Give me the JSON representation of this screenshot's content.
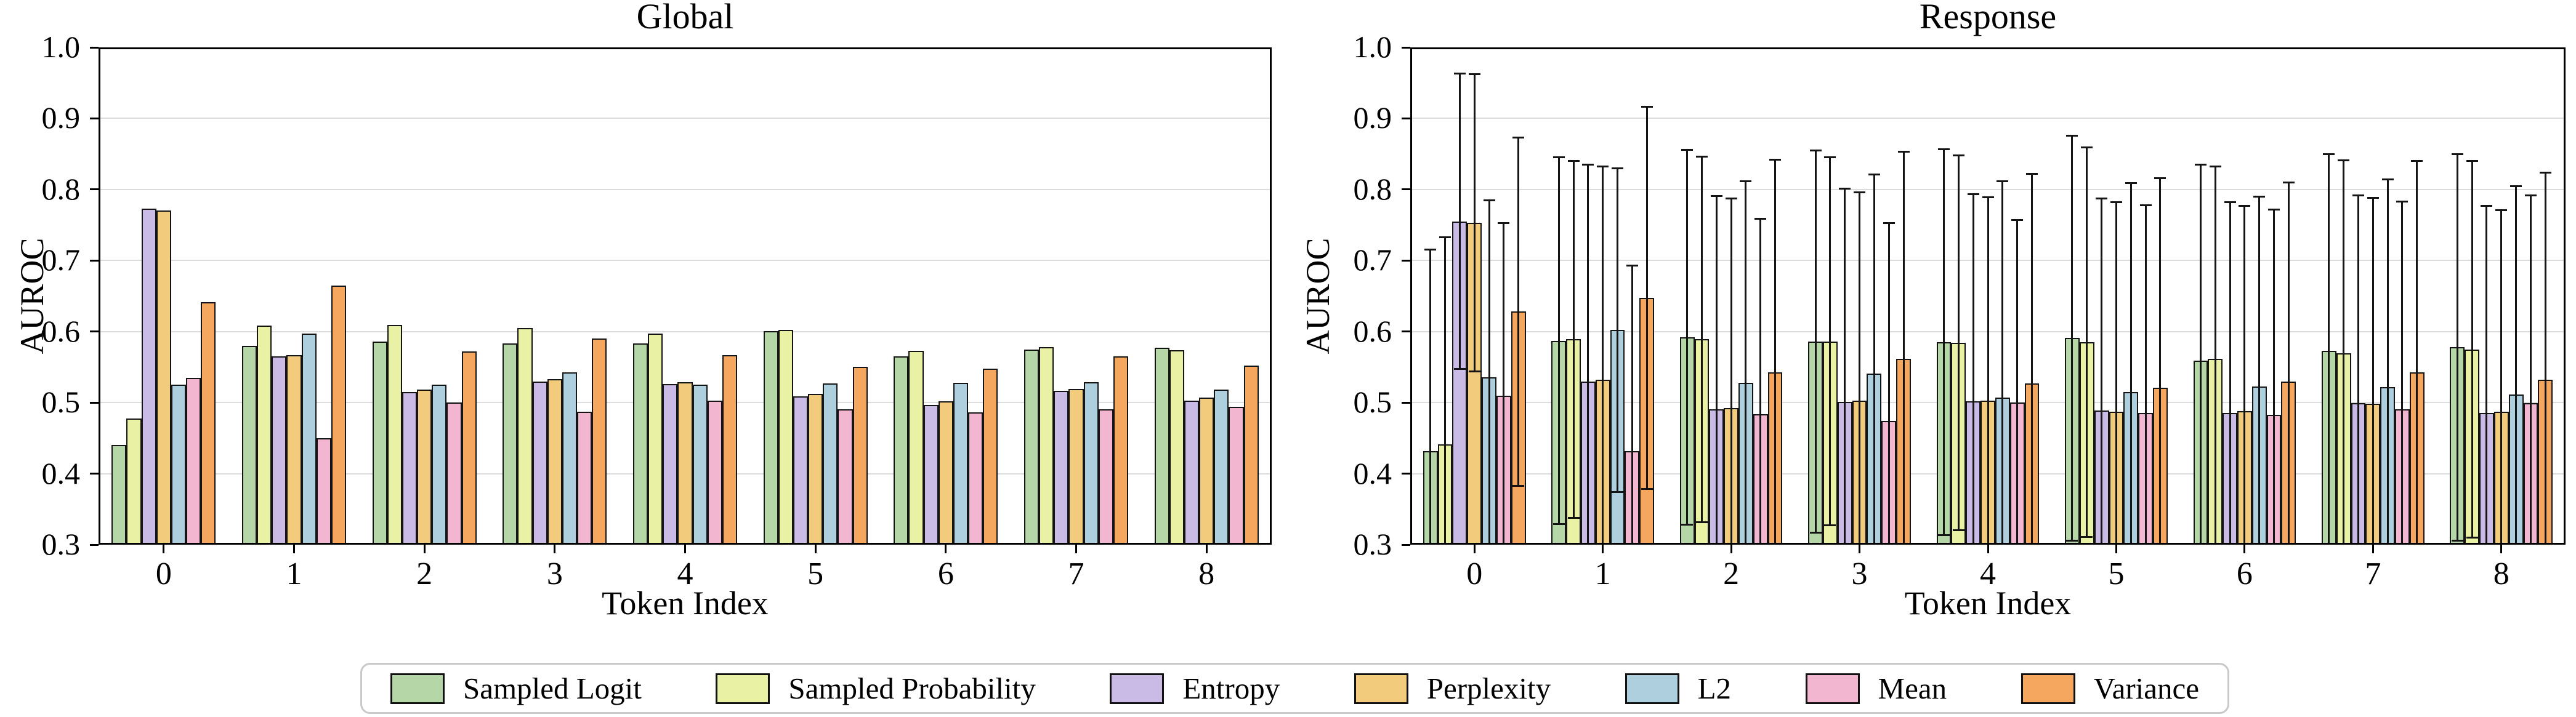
{
  "figure": {
    "background": "#ffffff",
    "grid_color": "#dcdcdc",
    "spine_color": "#000000",
    "bar_edge_color": "#141414",
    "error_bar_color": "#141414"
  },
  "legend": {
    "position": "bottom-center",
    "entries": [
      {
        "label": "Sampled Logit",
        "color": "#b5d6a6"
      },
      {
        "label": "Sampled Probability",
        "color": "#e9f2a4"
      },
      {
        "label": "Entropy",
        "color": "#c9bbe5"
      },
      {
        "label": "Perplexity",
        "color": "#f2cb7d"
      },
      {
        "label": "L2",
        "color": "#aecfdd"
      },
      {
        "label": "Mean",
        "color": "#f2b6d0"
      },
      {
        "label": "Variance",
        "color": "#f6a75f"
      }
    ]
  },
  "chart_data": [
    {
      "type": "bar",
      "title": "Global",
      "xlabel": "Token Index",
      "ylabel": "AUROC",
      "categories": [
        "0",
        "1",
        "2",
        "3",
        "4",
        "5",
        "6",
        "7",
        "8"
      ],
      "ylim": [
        0.3,
        1.0
      ],
      "yticks": [
        1.0,
        0.9,
        0.8,
        0.7,
        0.6,
        0.5,
        0.4,
        0.3
      ],
      "ytick_labels": [
        "1.0",
        "0.9",
        "0.8",
        "0.7",
        "0.6",
        "0.5",
        "0.4",
        "0.3"
      ],
      "grid": "horizontal",
      "error_bars": false,
      "series": [
        {
          "name": "Sampled Logit",
          "color": "#b5d6a6",
          "values": [
            0.44,
            0.58,
            0.586,
            0.583,
            0.583,
            0.601,
            0.565,
            0.575,
            0.577
          ]
        },
        {
          "name": "Sampled Probability",
          "color": "#e9f2a4",
          "values": [
            0.478,
            0.608,
            0.609,
            0.605,
            0.597,
            0.602,
            0.573,
            0.578,
            0.574
          ]
        },
        {
          "name": "Entropy",
          "color": "#c9bbe5",
          "values": [
            0.773,
            0.565,
            0.515,
            0.53,
            0.526,
            0.509,
            0.497,
            0.517,
            0.503
          ]
        },
        {
          "name": "Perplexity",
          "color": "#f2cb7d",
          "values": [
            0.77,
            0.567,
            0.518,
            0.533,
            0.529,
            0.512,
            0.502,
            0.519,
            0.507
          ]
        },
        {
          "name": "L2",
          "color": "#aecfdd",
          "values": [
            0.525,
            0.597,
            0.525,
            0.543,
            0.525,
            0.527,
            0.528,
            0.529,
            0.518
          ]
        },
        {
          "name": "Mean",
          "color": "#f2b6d0",
          "values": [
            0.535,
            0.45,
            0.5,
            0.487,
            0.503,
            0.491,
            0.486,
            0.491,
            0.494
          ]
        },
        {
          "name": "Variance",
          "color": "#f6a75f",
          "values": [
            0.641,
            0.665,
            0.572,
            0.59,
            0.567,
            0.55,
            0.548,
            0.565,
            0.552
          ]
        }
      ]
    },
    {
      "type": "bar",
      "title": "Response",
      "xlabel": "Token Index",
      "ylabel": "AUROC",
      "categories": [
        "0",
        "1",
        "2",
        "3",
        "4",
        "5",
        "6",
        "7",
        "8"
      ],
      "ylim": [
        0.3,
        1.0
      ],
      "yticks": [
        1.0,
        0.9,
        0.8,
        0.7,
        0.6,
        0.5,
        0.4,
        0.3
      ],
      "ytick_labels": [
        "1.0",
        "0.9",
        "0.8",
        "0.7",
        "0.6",
        "0.5",
        "0.4",
        "0.3"
      ],
      "grid": "horizontal",
      "error_bars": true,
      "series": [
        {
          "name": "Sampled Logit",
          "color": "#b5d6a6",
          "values": [
            0.432,
            0.587,
            0.592,
            0.586,
            0.585,
            0.591,
            0.559,
            0.573,
            0.578
          ],
          "errors": [
            0.283,
            0.258,
            0.264,
            0.269,
            0.272,
            0.285,
            0.276,
            0.277,
            0.272
          ]
        },
        {
          "name": "Sampled Probability",
          "color": "#e9f2a4",
          "values": [
            0.441,
            0.589,
            0.589,
            0.586,
            0.584,
            0.585,
            0.562,
            0.569,
            0.575
          ],
          "errors": [
            0.292,
            0.251,
            0.257,
            0.259,
            0.264,
            0.274,
            0.27,
            0.272,
            0.265
          ]
        },
        {
          "name": "Entropy",
          "color": "#c9bbe5",
          "values": [
            0.755,
            0.53,
            0.491,
            0.501,
            0.502,
            0.489,
            0.485,
            0.499,
            0.485
          ],
          "errors": [
            0.208,
            0.305,
            0.3,
            0.3,
            0.291,
            0.298,
            0.297,
            0.293,
            0.292
          ]
        },
        {
          "name": "Perplexity",
          "color": "#f2cb7d",
          "values": [
            0.753,
            0.532,
            0.492,
            0.503,
            0.503,
            0.487,
            0.488,
            0.498,
            0.487
          ],
          "errors": [
            0.209,
            0.3,
            0.295,
            0.293,
            0.286,
            0.295,
            0.289,
            0.29,
            0.284
          ]
        },
        {
          "name": "L2",
          "color": "#aecfdd",
          "values": [
            0.536,
            0.602,
            0.528,
            0.541,
            0.507,
            0.515,
            0.523,
            0.522,
            0.511
          ],
          "errors": [
            0.249,
            0.228,
            0.284,
            0.28,
            0.305,
            0.294,
            0.267,
            0.292,
            0.294
          ]
        },
        {
          "name": "Mean",
          "color": "#f2b6d0",
          "values": [
            0.51,
            0.432,
            0.484,
            0.474,
            0.5,
            0.485,
            0.483,
            0.491,
            0.499
          ],
          "errors": [
            0.243,
            0.261,
            0.275,
            0.279,
            0.257,
            0.293,
            0.289,
            0.292,
            0.293
          ]
        },
        {
          "name": "Variance",
          "color": "#f6a75f",
          "values": [
            0.628,
            0.647,
            0.543,
            0.562,
            0.527,
            0.521,
            0.53,
            0.543,
            0.532
          ],
          "errors": [
            0.245,
            0.269,
            0.299,
            0.291,
            0.295,
            0.295,
            0.28,
            0.297,
            0.292
          ]
        }
      ]
    }
  ]
}
